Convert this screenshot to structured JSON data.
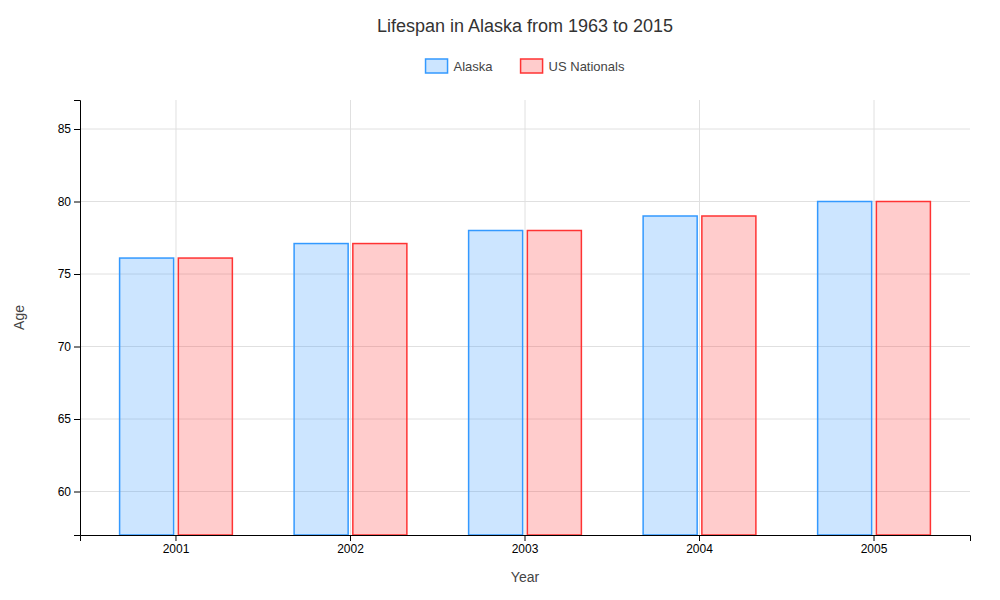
{
  "chart_data": {
    "type": "bar",
    "title": "Lifespan in Alaska from 1963 to 2015",
    "x_label": "Year",
    "y_label": "Age",
    "categories": [
      "2001",
      "2002",
      "2003",
      "2004",
      "2005"
    ],
    "series": [
      {
        "name": "Alaska",
        "color": "#3399ff",
        "values": [
          76.1,
          77.1,
          78.0,
          79.0,
          80.0
        ]
      },
      {
        "name": "US Nationals",
        "color": "#ff3333",
        "values": [
          76.1,
          77.1,
          78.0,
          79.0,
          80.0
        ]
      }
    ],
    "ylim": [
      57,
      87
    ],
    "yticks": [
      60,
      65,
      70,
      75,
      80,
      85
    ],
    "grid": true,
    "legend": "top"
  }
}
